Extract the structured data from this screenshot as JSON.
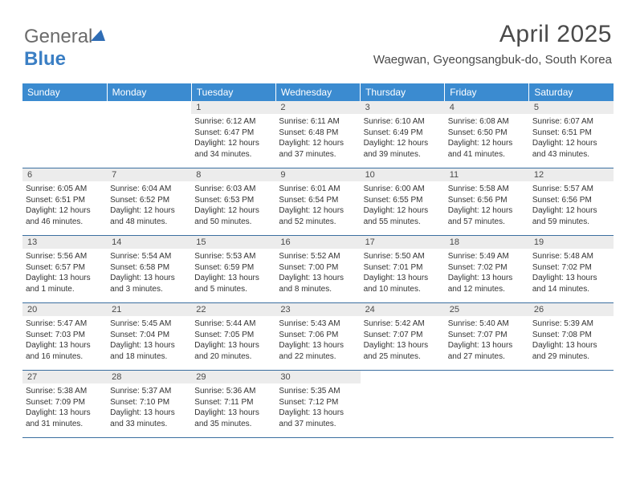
{
  "logo": {
    "text1": "General",
    "text2": "Blue"
  },
  "title": "April 2025",
  "location": "Waegwan, Gyeongsangbuk-do, South Korea",
  "colors": {
    "header_bg": "#3b8bd0",
    "header_text": "#ffffff",
    "daynum_bg": "#ececec",
    "row_border": "#3b6fa0",
    "text": "#333333",
    "title_text": "#4a4a4a",
    "logo_accent": "#3b7fc4"
  },
  "weekdays": [
    "Sunday",
    "Monday",
    "Tuesday",
    "Wednesday",
    "Thursday",
    "Friday",
    "Saturday"
  ],
  "weeks": [
    [
      null,
      null,
      {
        "n": "1",
        "sr": "Sunrise: 6:12 AM",
        "ss": "Sunset: 6:47 PM",
        "dl": "Daylight: 12 hours and 34 minutes."
      },
      {
        "n": "2",
        "sr": "Sunrise: 6:11 AM",
        "ss": "Sunset: 6:48 PM",
        "dl": "Daylight: 12 hours and 37 minutes."
      },
      {
        "n": "3",
        "sr": "Sunrise: 6:10 AM",
        "ss": "Sunset: 6:49 PM",
        "dl": "Daylight: 12 hours and 39 minutes."
      },
      {
        "n": "4",
        "sr": "Sunrise: 6:08 AM",
        "ss": "Sunset: 6:50 PM",
        "dl": "Daylight: 12 hours and 41 minutes."
      },
      {
        "n": "5",
        "sr": "Sunrise: 6:07 AM",
        "ss": "Sunset: 6:51 PM",
        "dl": "Daylight: 12 hours and 43 minutes."
      }
    ],
    [
      {
        "n": "6",
        "sr": "Sunrise: 6:05 AM",
        "ss": "Sunset: 6:51 PM",
        "dl": "Daylight: 12 hours and 46 minutes."
      },
      {
        "n": "7",
        "sr": "Sunrise: 6:04 AM",
        "ss": "Sunset: 6:52 PM",
        "dl": "Daylight: 12 hours and 48 minutes."
      },
      {
        "n": "8",
        "sr": "Sunrise: 6:03 AM",
        "ss": "Sunset: 6:53 PM",
        "dl": "Daylight: 12 hours and 50 minutes."
      },
      {
        "n": "9",
        "sr": "Sunrise: 6:01 AM",
        "ss": "Sunset: 6:54 PM",
        "dl": "Daylight: 12 hours and 52 minutes."
      },
      {
        "n": "10",
        "sr": "Sunrise: 6:00 AM",
        "ss": "Sunset: 6:55 PM",
        "dl": "Daylight: 12 hours and 55 minutes."
      },
      {
        "n": "11",
        "sr": "Sunrise: 5:58 AM",
        "ss": "Sunset: 6:56 PM",
        "dl": "Daylight: 12 hours and 57 minutes."
      },
      {
        "n": "12",
        "sr": "Sunrise: 5:57 AM",
        "ss": "Sunset: 6:56 PM",
        "dl": "Daylight: 12 hours and 59 minutes."
      }
    ],
    [
      {
        "n": "13",
        "sr": "Sunrise: 5:56 AM",
        "ss": "Sunset: 6:57 PM",
        "dl": "Daylight: 13 hours and 1 minute."
      },
      {
        "n": "14",
        "sr": "Sunrise: 5:54 AM",
        "ss": "Sunset: 6:58 PM",
        "dl": "Daylight: 13 hours and 3 minutes."
      },
      {
        "n": "15",
        "sr": "Sunrise: 5:53 AM",
        "ss": "Sunset: 6:59 PM",
        "dl": "Daylight: 13 hours and 5 minutes."
      },
      {
        "n": "16",
        "sr": "Sunrise: 5:52 AM",
        "ss": "Sunset: 7:00 PM",
        "dl": "Daylight: 13 hours and 8 minutes."
      },
      {
        "n": "17",
        "sr": "Sunrise: 5:50 AM",
        "ss": "Sunset: 7:01 PM",
        "dl": "Daylight: 13 hours and 10 minutes."
      },
      {
        "n": "18",
        "sr": "Sunrise: 5:49 AM",
        "ss": "Sunset: 7:02 PM",
        "dl": "Daylight: 13 hours and 12 minutes."
      },
      {
        "n": "19",
        "sr": "Sunrise: 5:48 AM",
        "ss": "Sunset: 7:02 PM",
        "dl": "Daylight: 13 hours and 14 minutes."
      }
    ],
    [
      {
        "n": "20",
        "sr": "Sunrise: 5:47 AM",
        "ss": "Sunset: 7:03 PM",
        "dl": "Daylight: 13 hours and 16 minutes."
      },
      {
        "n": "21",
        "sr": "Sunrise: 5:45 AM",
        "ss": "Sunset: 7:04 PM",
        "dl": "Daylight: 13 hours and 18 minutes."
      },
      {
        "n": "22",
        "sr": "Sunrise: 5:44 AM",
        "ss": "Sunset: 7:05 PM",
        "dl": "Daylight: 13 hours and 20 minutes."
      },
      {
        "n": "23",
        "sr": "Sunrise: 5:43 AM",
        "ss": "Sunset: 7:06 PM",
        "dl": "Daylight: 13 hours and 22 minutes."
      },
      {
        "n": "24",
        "sr": "Sunrise: 5:42 AM",
        "ss": "Sunset: 7:07 PM",
        "dl": "Daylight: 13 hours and 25 minutes."
      },
      {
        "n": "25",
        "sr": "Sunrise: 5:40 AM",
        "ss": "Sunset: 7:07 PM",
        "dl": "Daylight: 13 hours and 27 minutes."
      },
      {
        "n": "26",
        "sr": "Sunrise: 5:39 AM",
        "ss": "Sunset: 7:08 PM",
        "dl": "Daylight: 13 hours and 29 minutes."
      }
    ],
    [
      {
        "n": "27",
        "sr": "Sunrise: 5:38 AM",
        "ss": "Sunset: 7:09 PM",
        "dl": "Daylight: 13 hours and 31 minutes."
      },
      {
        "n": "28",
        "sr": "Sunrise: 5:37 AM",
        "ss": "Sunset: 7:10 PM",
        "dl": "Daylight: 13 hours and 33 minutes."
      },
      {
        "n": "29",
        "sr": "Sunrise: 5:36 AM",
        "ss": "Sunset: 7:11 PM",
        "dl": "Daylight: 13 hours and 35 minutes."
      },
      {
        "n": "30",
        "sr": "Sunrise: 5:35 AM",
        "ss": "Sunset: 7:12 PM",
        "dl": "Daylight: 13 hours and 37 minutes."
      },
      null,
      null,
      null
    ]
  ]
}
